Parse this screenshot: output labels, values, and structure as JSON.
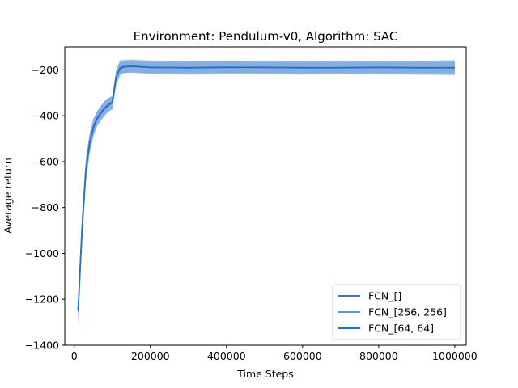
{
  "chart_data": {
    "type": "line",
    "title": "Environment: Pendulum-v0,  Algorithm: SAC",
    "xlabel": "Time Steps",
    "ylabel": "Average return",
    "xlim": [
      -25000,
      1030000
    ],
    "ylim": [
      -1400,
      -100
    ],
    "xticks": [
      0,
      200000,
      400000,
      600000,
      800000,
      1000000
    ],
    "yticks": [
      -1400,
      -1200,
      -1000,
      -800,
      -600,
      -400,
      -200
    ],
    "grid": false,
    "legend": "lower-right",
    "x": [
      10000,
      20000,
      30000,
      40000,
      50000,
      60000,
      70000,
      80000,
      90000,
      100000,
      110000,
      120000,
      130000,
      150000,
      200000,
      300000,
      400000,
      500000,
      600000,
      700000,
      800000,
      900000,
      1000000
    ],
    "series": [
      {
        "name": "FCN_[]",
        "color": "#4c6fb0",
        "values": [
          -1250,
          -900,
          -640,
          -520,
          -450,
          -410,
          -385,
          -365,
          -350,
          -340,
          -230,
          -195,
          -188,
          -185,
          -190,
          -190,
          -188,
          -190,
          -190,
          -190,
          -190,
          -190,
          -190
        ],
        "band": [
          40,
          60,
          50,
          40,
          35,
          30,
          30,
          30,
          28,
          28,
          30,
          28,
          25,
          25,
          25,
          25,
          25,
          25,
          25,
          25,
          25,
          25,
          25
        ]
      },
      {
        "name": "FCN_[256, 256]",
        "color": "#5a9bd8",
        "values": [
          -1255,
          -910,
          -650,
          -525,
          -455,
          -415,
          -390,
          -370,
          -355,
          -345,
          -235,
          -190,
          -185,
          -183,
          -188,
          -192,
          -190,
          -188,
          -192,
          -188,
          -190,
          -192,
          -190
        ],
        "band": [
          80,
          70,
          55,
          45,
          40,
          35,
          35,
          33,
          30,
          30,
          35,
          35,
          30,
          30,
          30,
          30,
          30,
          30,
          30,
          30,
          30,
          30,
          35
        ]
      },
      {
        "name": "FCN_[64, 64]",
        "color": "#1f6fd0",
        "values": [
          -1245,
          -905,
          -645,
          -522,
          -452,
          -412,
          -388,
          -368,
          -352,
          -342,
          -232,
          -192,
          -186,
          -184,
          -189,
          -191,
          -189,
          -189,
          -191,
          -191,
          -189,
          -191,
          -191
        ],
        "band": [
          60,
          65,
          52,
          42,
          38,
          32,
          32,
          31,
          29,
          29,
          32,
          30,
          28,
          28,
          28,
          28,
          28,
          28,
          28,
          28,
          28,
          28,
          30
        ]
      }
    ]
  }
}
